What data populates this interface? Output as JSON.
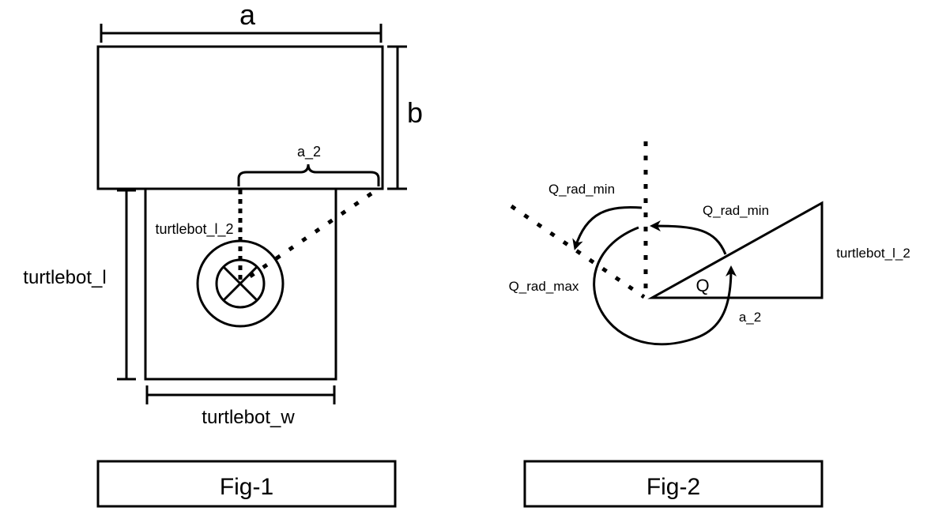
{
  "fig1": {
    "label_a": "a",
    "label_b": "b",
    "label_a_2": "a_2",
    "label_turtlebot_l_2": "turtlebot_l_2",
    "label_turtlebot_l": "turtlebot_l",
    "label_turtlebot_w": "turtlebot_w",
    "caption": "Fig-1"
  },
  "fig2": {
    "label_q_rad_min_left": "Q_rad_min",
    "label_q_rad_min_right": "Q_rad_min",
    "label_q_rad_max": "Q_rad_max",
    "label_turtlebot_l_2": "turtlebot_l_2",
    "label_q": "Q",
    "label_a_2": "a_2",
    "caption": "Fig-2"
  },
  "colors": {
    "stroke": "#000000",
    "background": "#ffffff"
  }
}
